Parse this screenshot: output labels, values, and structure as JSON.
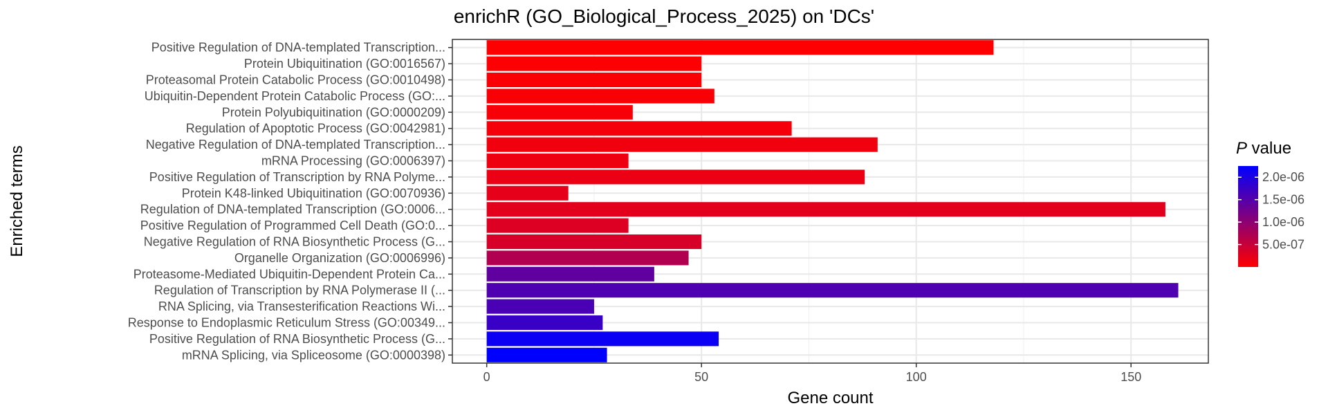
{
  "chart_data": {
    "type": "bar",
    "orientation": "horizontal",
    "title": "enrichR (GO_Biological_Process_2025) on 'DCs'",
    "xlabel": "Gene count",
    "ylabel": "Enriched terms",
    "xlim": [
      -8,
      168
    ],
    "x_ticks": [
      0,
      50,
      100,
      150
    ],
    "x_tick_labels": [
      "0",
      "50",
      "100",
      "150"
    ],
    "grid": true,
    "legend": {
      "title_italic": "P",
      "title_rest": " value",
      "position": "right",
      "domain": [
        0,
        2.25e-06
      ],
      "tick_values": [
        5e-07,
        1e-06,
        1.5e-06,
        2e-06
      ],
      "tick_labels": [
        "5.0e-07",
        "1.0e-06",
        "1.5e-06",
        "2.0e-06"
      ],
      "low_color": "#ff0000",
      "high_color": "#0000ff"
    },
    "categories": [
      "Positive Regulation of DNA-templated Transcription...",
      "Protein Ubiquitination (GO:0016567)",
      "Proteasomal Protein Catabolic Process (GO:0010498)",
      "Ubiquitin-Dependent Protein Catabolic Process (GO:...",
      "Protein Polyubiquitination (GO:0000209)",
      "Regulation of Apoptotic Process (GO:0042981)",
      "Negative Regulation of DNA-templated Transcription...",
      "mRNA Processing (GO:0006397)",
      "Positive Regulation of Transcription by RNA Polyme...",
      "Protein K48-linked Ubiquitination (GO:0070936)",
      "Regulation of DNA-templated Transcription (GO:0006...",
      "Positive Regulation of Programmed Cell Death (GO:0...",
      "Negative Regulation of RNA Biosynthetic Process (G...",
      "Organelle Organization (GO:0006996)",
      "Proteasome-Mediated Ubiquitin-Dependent Protein Ca...",
      "Regulation of Transcription by RNA Polymerase II (...",
      "RNA Splicing, via Transesterification Reactions Wi...",
      "Response to Endoplasmic Reticulum Stress (GO:00349...",
      "Positive Regulation of RNA Biosynthetic Process (G...",
      "mRNA Splicing, via Spliceosome (GO:0000398)"
    ],
    "values": [
      118,
      50,
      50,
      53,
      34,
      71,
      91,
      33,
      88,
      19,
      158,
      33,
      50,
      47,
      39,
      161,
      25,
      27,
      54,
      28
    ],
    "p_values": [
      1e-08,
      3e-08,
      4e-08,
      5e-08,
      7e-08,
      9e-08,
      1.2e-07,
      1.5e-07,
      1.8e-07,
      2.2e-07,
      2.6e-07,
      3e-07,
      3.6e-07,
      7e-07,
      1.4e-06,
      1.55e-06,
      1.6e-06,
      1.75e-06,
      2.15e-06,
      2.25e-06
    ]
  }
}
